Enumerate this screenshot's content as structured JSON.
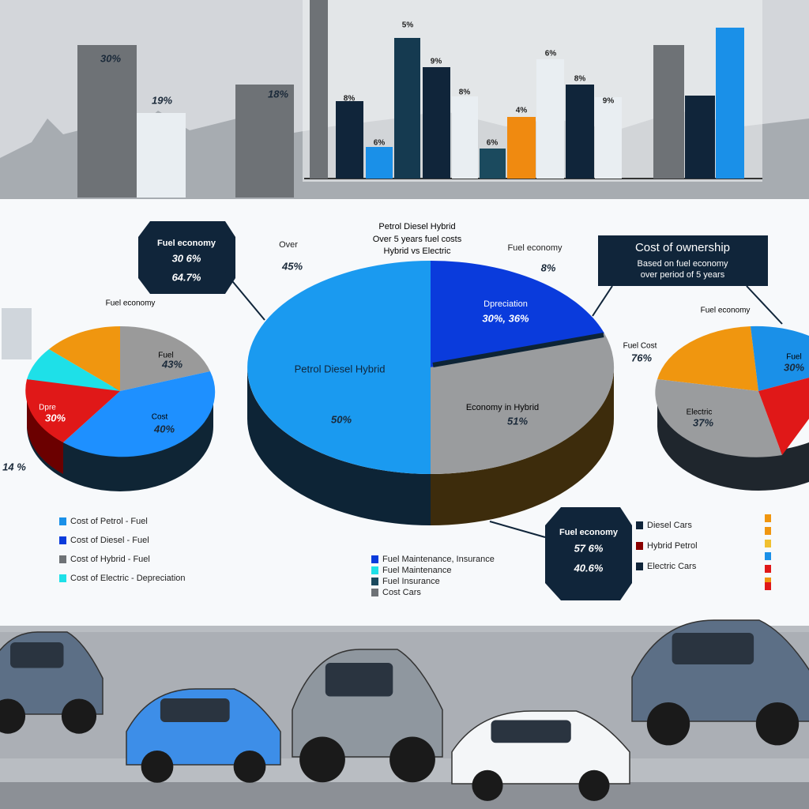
{
  "top_bars": {
    "left_labels": [
      "30%",
      "19%",
      "18%"
    ],
    "right_labels": [
      "8%",
      "6%",
      "5%",
      "9%",
      "8%",
      "6%",
      "4%",
      "6%",
      "8%",
      "9%"
    ]
  },
  "callouts": [
    {
      "lines": [
        "Fuel economy",
        "30 6%",
        "64.7%"
      ]
    },
    {
      "title": "Cost of ownership",
      "lines": [
        "Based on fuel economy",
        "over period of 5 years"
      ]
    },
    {
      "lines": [
        "Fuel economy",
        "57 6%",
        "40.6%"
      ]
    }
  ],
  "main_pie": {
    "heading": [
      "Petrol Diesel Hybrid",
      "Over 5 years fuel costs",
      "Hybrid vs Electric"
    ],
    "side_notes": [
      {
        "name": "Over",
        "value": "45%"
      },
      {
        "name": "Fuel economy",
        "value": "8%"
      }
    ],
    "segments": [
      {
        "name": "Petrol Diesel Hybrid",
        "value": "50%"
      },
      {
        "name": "Dpreciation",
        "value": "30%, 36%"
      },
      {
        "name": "Economy in Hybrid",
        "value": "51%"
      }
    ]
  },
  "left_pie": {
    "note": "Fuel economy",
    "segments": [
      {
        "name": "Fuel",
        "value": "43%"
      },
      {
        "name": "Cost",
        "value": "40%"
      },
      {
        "name": "Dpre",
        "value": "30%"
      }
    ],
    "corner": "14 %"
  },
  "right_pie": {
    "note": "Fuel economy",
    "side": {
      "name": "Fuel Cost",
      "value": "76%"
    },
    "segments": [
      {
        "name": "Fuel",
        "value": "30%"
      },
      {
        "name": "Electric",
        "value": "37%"
      }
    ]
  },
  "legends": {
    "left": [
      "Cost of Petrol - Fuel",
      "Cost of Diesel - Fuel",
      "Cost of Hybrid - Fuel",
      "Cost of Electric - Depreciation"
    ],
    "middle": [
      "Fuel Maintenance, Insurance",
      "Fuel Maintenance",
      "Fuel Insurance",
      "Cost Cars"
    ],
    "right": [
      "Diesel Cars",
      "Hybrid Petrol",
      "Electric Cars"
    ]
  }
}
